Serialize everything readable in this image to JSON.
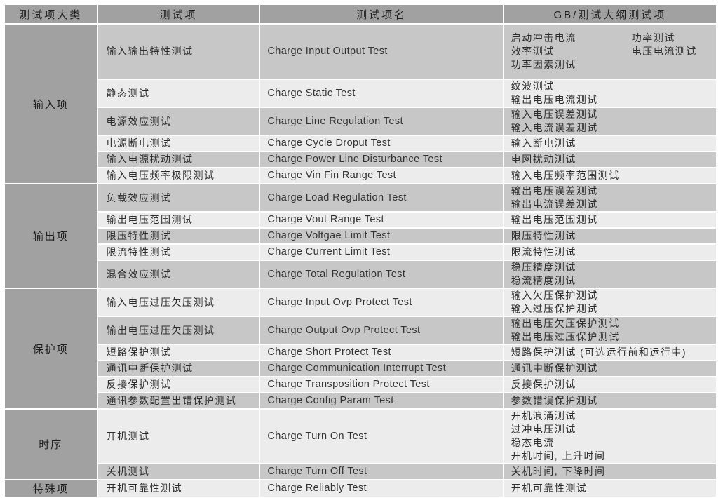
{
  "colors": {
    "header_bg": "#a1a1a1",
    "row_dark": "#c7c7c7",
    "row_light": "#ececec",
    "border": "#ffffff",
    "text": "#2d2d2d"
  },
  "table": {
    "columns": [
      "测试项大类",
      "测试项",
      "测试项名",
      "GB/测试大纲测试项"
    ],
    "sections": [
      {
        "category": "输入项",
        "rows": [
          {
            "item": "输入输出特性测试",
            "name": "Charge Input Output Test",
            "gb_cols": [
              [
                "启动冲击电流",
                "效率测试",
                "功率因素测试"
              ],
              [
                "功率测试",
                "电压电流测试"
              ]
            ]
          },
          {
            "item": "静态测试",
            "name": "Charge Static Test",
            "gb": [
              "纹波测试",
              "输出电压电流测试"
            ]
          },
          {
            "item": "电源效应测试",
            "name": "Charge Line Regulation Test",
            "gb": [
              "输入电压误差测试",
              "输入电流误差测试"
            ]
          },
          {
            "item": "电源断电测试",
            "name": "Charge Cycle Droput Test",
            "gb": [
              "输入断电测试"
            ]
          },
          {
            "item": "输入电源扰动测试",
            "name": "Charge Power Line Disturbance Test",
            "gb": [
              "电网扰动测试"
            ]
          },
          {
            "item": "输入电压频率极限测试",
            "name": "Charge Vin Fin Range Test",
            "gb": [
              "输入电压频率范围测试"
            ]
          }
        ]
      },
      {
        "category": "输出项",
        "rows": [
          {
            "item": "负载效应测试",
            "name": "Charge Load Regulation Test",
            "gb": [
              "输出电压误差测试",
              "输出电流误差测试"
            ]
          },
          {
            "item": "输出电压范围测试",
            "name": "Charge Vout Range Test",
            "gb": [
              "输出电压范围测试"
            ]
          },
          {
            "item": "限压特性测试",
            "name": "Charge Voltgae Limit Test",
            "gb": [
              "限压特性测试"
            ]
          },
          {
            "item": "限流特性测试",
            "name": "Charge Current Limit Test",
            "gb": [
              "限流特性测试"
            ]
          },
          {
            "item": "混合效应测试",
            "name": "Charge Total Regulation Test",
            "gb": [
              "稳压精度测试",
              "稳流精度测试"
            ]
          }
        ]
      },
      {
        "category": "保护项",
        "rows": [
          {
            "item": "输入电压过压欠压测试",
            "name": "Charge Input Ovp Protect Test",
            "gb": [
              "输入欠压保护测试",
              "输入过压保护测试"
            ]
          },
          {
            "item": "输出电压过压欠压测试",
            "name": "Charge Output Ovp Protect Test",
            "gb": [
              "输出电压欠压保护测试",
              "输出电压过压保护测试"
            ]
          },
          {
            "item": "短路保护测试",
            "name": "Charge Short Protect Test",
            "gb": [
              "短路保护测试 (可选运行前和运行中)"
            ]
          },
          {
            "item": "通讯中断保护测试",
            "name": "Charge Communication Interrupt Test",
            "gb": [
              "通讯中断保护测试"
            ]
          },
          {
            "item": "反接保护测试",
            "name": "Charge Transposition Protect Test",
            "gb": [
              "反接保护测试"
            ]
          },
          {
            "item": "通讯参数配置出错保护测试",
            "name": "Charge Config Param Test",
            "gb": [
              "参数错误保护测试"
            ]
          }
        ]
      },
      {
        "category": "时序",
        "rows": [
          {
            "item": "开机测试",
            "name": "Charge Turn On Test",
            "gb": [
              "开机浪涌测试",
              "过冲电压测试",
              "稳态电流",
              "开机时间, 上升时间"
            ]
          },
          {
            "item": "关机测试",
            "name": "Charge Turn Off Test",
            "gb": [
              "关机时间, 下降时间"
            ]
          }
        ]
      },
      {
        "category": "特殊项",
        "rows": [
          {
            "item": "开机可靠性测试",
            "name": "Charge Reliably Test",
            "gb": [
              "开机可靠性测试"
            ]
          }
        ]
      }
    ]
  }
}
